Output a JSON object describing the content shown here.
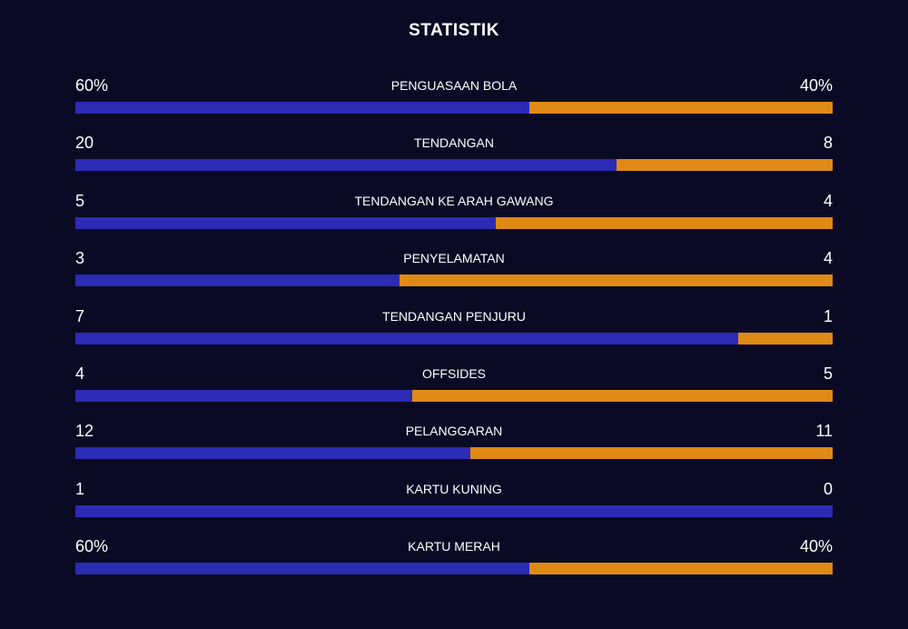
{
  "header": {
    "title": "STATISTIK"
  },
  "stats": [
    {
      "label": "PENGUASAAN BOLA",
      "home": 60,
      "away": 40,
      "home_label": "60%",
      "away_label": "40%"
    },
    {
      "label": "TENDANGAN",
      "home": 20,
      "away": 8
    },
    {
      "label": "TENDANGAN KE ARAH GAWANG",
      "home": 5,
      "away": 4
    },
    {
      "label": "PENYELAMATAN",
      "home": 3,
      "away": 4
    },
    {
      "label": "TENDANGAN PENJURU",
      "home": 7,
      "away": 1
    },
    {
      "label": "OFFSIDES",
      "home": 4,
      "away": 5
    },
    {
      "label": "PELANGGARAN",
      "home": 12,
      "away": 11
    },
    {
      "label": "KARTU KUNING",
      "home": 1,
      "away": 0
    },
    {
      "label": "KARTU MERAH",
      "home": 60,
      "away": 40,
      "home_label": "60%",
      "away_label": "40%"
    }
  ],
  "colors": {
    "home": "#2b2bb5",
    "away": "#df8a14"
  }
}
